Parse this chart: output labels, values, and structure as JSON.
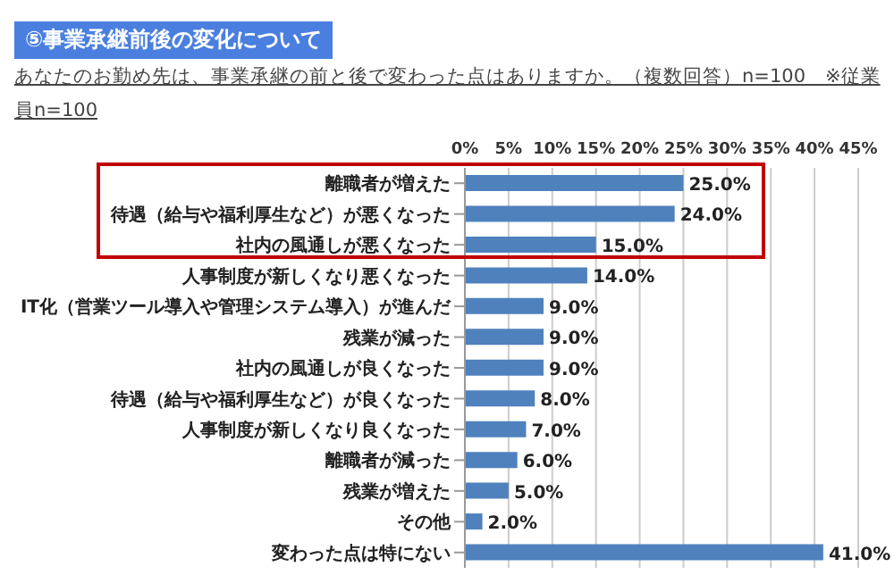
{
  "chart_data": {
    "type": "bar",
    "orientation": "horizontal",
    "title": "⑤事業承継前後の変化について",
    "subtitle": "あなたのお勤め先は、事業承継の前と後で変わった点はありますか。（複数回答）n=100　※従業員n=100",
    "categories": [
      "離職者が増えた",
      "待遇（給与や福利厚生など）が悪くなった",
      "社内の風通しが悪くなった",
      "人事制度が新しくなり悪くなった",
      "IT化（営業ツール導入や管理システム導入）が進んだ",
      "残業が減った",
      "社内の風通しが良くなった",
      "待遇（給与や福利厚生など）が良くなった",
      "人事制度が新しくなり良くなった",
      "離職者が減った",
      "残業が増えた",
      "その他",
      "変わった点は特にない"
    ],
    "values": [
      25,
      24,
      15,
      14,
      9,
      9,
      9,
      8,
      7,
      6,
      5,
      2,
      41
    ],
    "value_labels": [
      "25.0%",
      "24.0%",
      "15.0%",
      "14.0%",
      "9.0%",
      "9.0%",
      "9.0%",
      "8.0%",
      "7.0%",
      "6.0%",
      "5.0%",
      "2.0%",
      "41.0%"
    ],
    "color": "#4f81bd",
    "xlim": [
      0,
      45
    ],
    "xticks": [
      {
        "value": 0,
        "label": "0%"
      },
      {
        "value": 5,
        "label": "5%"
      },
      {
        "value": 10,
        "label": "10%"
      },
      {
        "value": 15,
        "label": "15%"
      },
      {
        "value": 20,
        "label": "20%"
      },
      {
        "value": 25,
        "label": "25%"
      },
      {
        "value": 30,
        "label": "30%"
      },
      {
        "value": 35,
        "label": "35%"
      },
      {
        "value": 40,
        "label": "40%"
      },
      {
        "value": 45,
        "label": "45%"
      }
    ],
    "grid": "x",
    "legend": false
  }
}
